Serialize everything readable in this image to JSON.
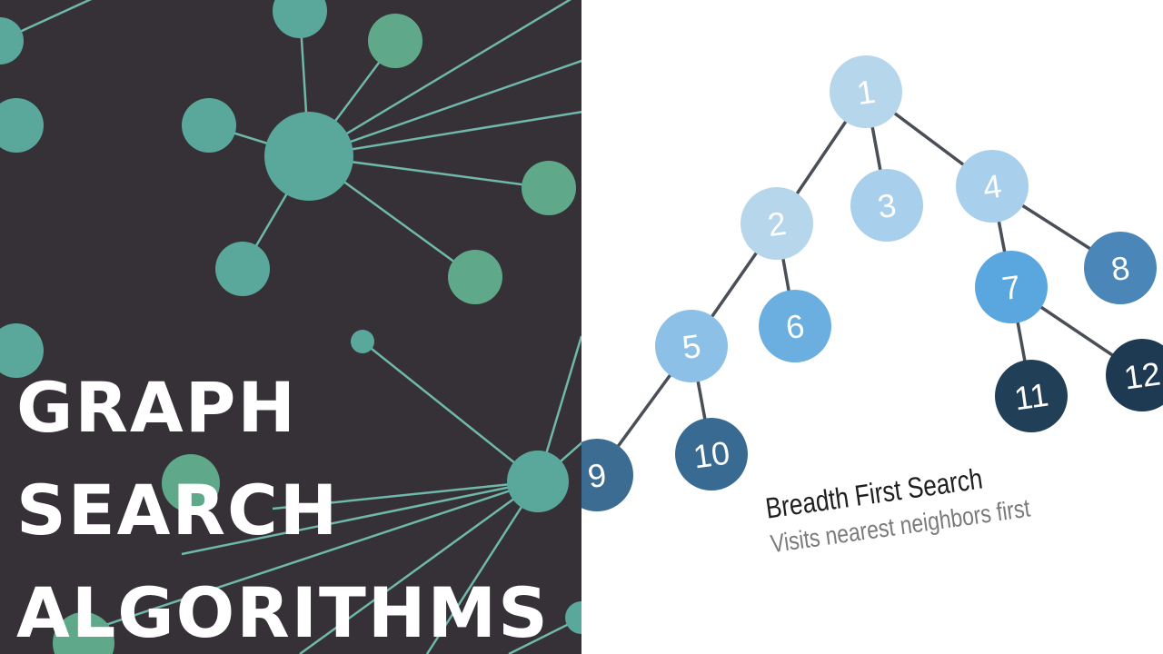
{
  "cover": {
    "title_lines": [
      "GRAPH",
      "SEARCH",
      "ALGORITHMS"
    ]
  },
  "bfs_diagram": {
    "caption_title": "Breadth First Search",
    "caption_subtitle": "Visits nearest neighbors first",
    "nodes": [
      {
        "id": 1,
        "label": "1",
        "color": "#b6d6ec",
        "text_color": "#ffffff"
      },
      {
        "id": 2,
        "label": "2",
        "color": "#b6d6ec",
        "text_color": "#ffffff"
      },
      {
        "id": 3,
        "label": "3",
        "color": "#a8d0ec",
        "text_color": "#ffffff"
      },
      {
        "id": 4,
        "label": "4",
        "color": "#a8d0ec",
        "text_color": "#ffffff"
      },
      {
        "id": 5,
        "label": "5",
        "color": "#8cc0e6",
        "text_color": "#ffffff"
      },
      {
        "id": 6,
        "label": "6",
        "color": "#6aafe0",
        "text_color": "#ffffff"
      },
      {
        "id": 7,
        "label": "7",
        "color": "#5aa6de",
        "text_color": "#ffffff"
      },
      {
        "id": 8,
        "label": "8",
        "color": "#4a87b8",
        "text_color": "#ffffff"
      },
      {
        "id": 9,
        "label": "9",
        "color": "#3c6c92",
        "text_color": "#ffffff"
      },
      {
        "id": 10,
        "label": "10",
        "color": "#386a92",
        "text_color": "#ffffff"
      },
      {
        "id": 11,
        "label": "11",
        "color": "#223f58",
        "text_color": "#ffffff"
      },
      {
        "id": 12,
        "label": "12",
        "color": "#1e3a52",
        "text_color": "#ffffff"
      }
    ],
    "edges": [
      [
        1,
        2
      ],
      [
        1,
        3
      ],
      [
        1,
        4
      ],
      [
        2,
        5
      ],
      [
        2,
        6
      ],
      [
        4,
        7
      ],
      [
        4,
        8
      ],
      [
        5,
        9
      ],
      [
        5,
        10
      ],
      [
        7,
        11
      ],
      [
        7,
        12
      ]
    ],
    "edge_color": "#4a4f57"
  },
  "colors": {
    "left_background": "#353137",
    "node_teal": "#5aa89c",
    "node_green": "#5fa88a",
    "edge_teal": "#6fb8aa",
    "title_text": "#ffffff"
  }
}
